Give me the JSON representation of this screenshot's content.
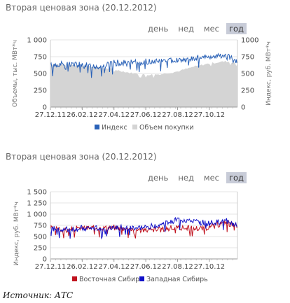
{
  "source": "Источник: АТС",
  "panels": [
    {
      "title": "Вторая ценовая зона (20.12.2012)",
      "tabs": [
        {
          "label": "день"
        },
        {
          "label": "нед"
        },
        {
          "label": "мес"
        },
        {
          "label": "год",
          "active": true
        }
      ]
    },
    {
      "title": "Вторая ценовая зона (20.12.2012)",
      "tabs": [
        {
          "label": "день"
        },
        {
          "label": "нед"
        },
        {
          "label": "мес"
        },
        {
          "label": "год",
          "active": true
        }
      ]
    }
  ],
  "colors": {
    "index": "#2a62b8",
    "volume": "#d4d4d4",
    "east_siberia": "#c0121e",
    "west_siberia": "#1010c8"
  },
  "chart_data": [
    {
      "type": "line",
      "title": "",
      "ylabel_left": "Объемы, тыс. МВт*ч",
      "ylabel_right": "Индекс, руб. МВт*ч",
      "ylim_left": [
        0,
        1000
      ],
      "ylim_right": [
        0,
        1000
      ],
      "yticks_left": [
        "0",
        "250",
        "500",
        "750",
        "1 000"
      ],
      "yticks_right": [
        "0",
        "250",
        "500",
        "750",
        "1000"
      ],
      "xlim": [
        "2011-12-27",
        "2012-12-20"
      ],
      "xtick_labels": [
        "27.12.11",
        "26.02.12",
        "27.04.12",
        "27.06.12",
        "27.08.12",
        "27.10.12"
      ],
      "xticks": [
        "2011-12-27",
        "2012-02-26",
        "2012-04-27",
        "2012-06-27",
        "2012-08-27",
        "2012-10-27"
      ],
      "legend": "bottom",
      "x": [
        "2011-12-27",
        "2012-01-27",
        "2012-02-26",
        "2012-03-27",
        "2012-04-27",
        "2012-05-27",
        "2012-06-27",
        "2012-07-27",
        "2012-08-27",
        "2012-09-27",
        "2012-10-27",
        "2012-11-27",
        "2012-12-20"
      ],
      "series": [
        {
          "name": "Индекс",
          "type": "line",
          "axis": "right",
          "values": [
            610,
            650,
            620,
            600,
            650,
            655,
            670,
            690,
            700,
            720,
            740,
            770,
            660
          ]
        },
        {
          "name": "Объем покупки",
          "type": "area",
          "axis": "left",
          "values": [
            640,
            630,
            620,
            590,
            560,
            510,
            480,
            490,
            530,
            600,
            650,
            680,
            650
          ]
        }
      ]
    },
    {
      "type": "line",
      "title": "",
      "ylabel": "Индекс, руб. МВт*ч",
      "ylim": [
        0,
        1500
      ],
      "yticks": [
        "0",
        "250",
        "500",
        "750",
        "1 000",
        "1 250",
        "1 500"
      ],
      "xlim": [
        "2011-12-27",
        "2012-12-20"
      ],
      "xtick_labels": [
        "27.12.11",
        "26.02.12",
        "27.04.12",
        "27.06.12",
        "27.08.12",
        "27.10.12"
      ],
      "xticks": [
        "2011-12-27",
        "2012-02-26",
        "2012-04-27",
        "2012-06-27",
        "2012-08-27",
        "2012-10-27"
      ],
      "legend": "bottom",
      "x": [
        "2011-12-27",
        "2012-01-27",
        "2012-02-26",
        "2012-03-27",
        "2012-04-27",
        "2012-05-27",
        "2012-06-27",
        "2012-07-27",
        "2012-08-27",
        "2012-09-27",
        "2012-10-27",
        "2012-11-27",
        "2012-12-20"
      ],
      "series": [
        {
          "name": "Восточная Сибирь",
          "values": [
            680,
            640,
            690,
            690,
            700,
            680,
            640,
            660,
            700,
            680,
            700,
            820,
            730
          ]
        },
        {
          "name": "Западная Сибирь",
          "values": [
            680,
            650,
            680,
            680,
            700,
            690,
            700,
            770,
            880,
            840,
            790,
            850,
            740
          ]
        }
      ]
    }
  ]
}
